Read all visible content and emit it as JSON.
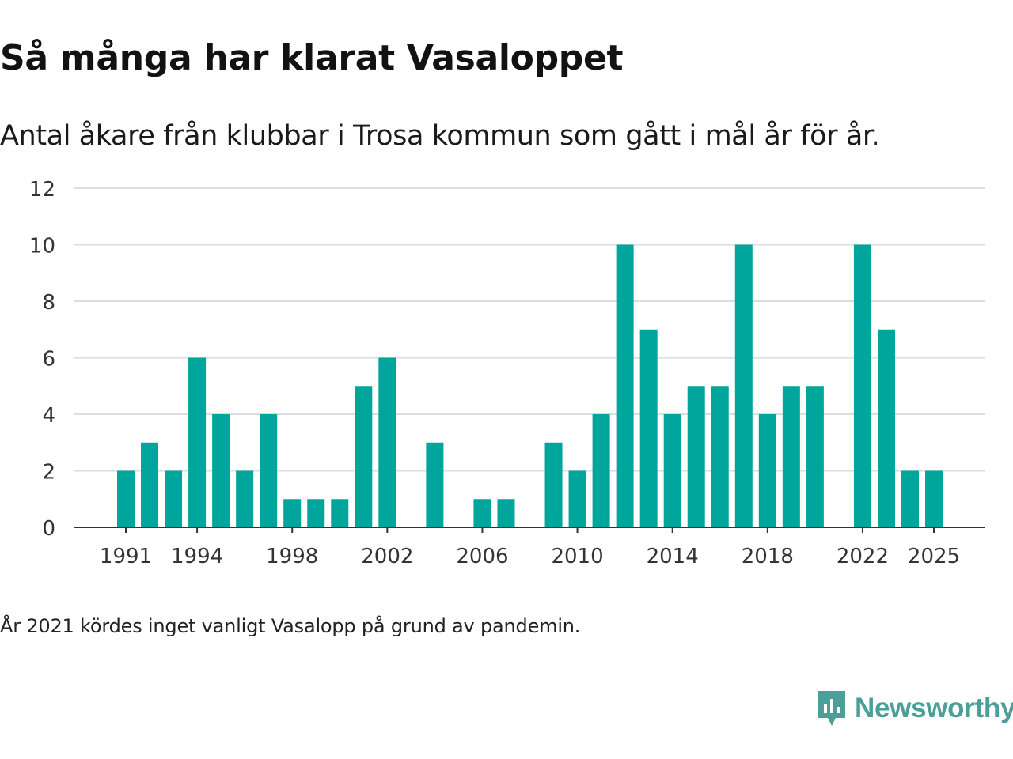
{
  "title": "Så många har klarat Vasaloppet",
  "subtitle": "Antal åkare från klubbar i Trosa kommun som gått i mål år för år.",
  "note": "År 2021 kördes inget vanligt Vasalopp på grund av pandemin.",
  "brand": {
    "name": "Newsworthy",
    "color": "#4a9f98"
  },
  "colors": {
    "bar": "#00a59b",
    "grid": "#dddddd",
    "axis": "#333333"
  },
  "chart_data": {
    "type": "bar",
    "title": "Så många har klarat Vasaloppet",
    "xlabel": "",
    "ylabel": "",
    "categories": [
      1991,
      1992,
      1993,
      1994,
      1995,
      1996,
      1997,
      1998,
      1999,
      2000,
      2001,
      2002,
      2003,
      2004,
      2005,
      2006,
      2007,
      2008,
      2009,
      2010,
      2011,
      2012,
      2013,
      2014,
      2015,
      2016,
      2017,
      2018,
      2019,
      2020,
      2021,
      2022,
      2023,
      2024,
      2025
    ],
    "values": [
      2,
      3,
      2,
      6,
      4,
      2,
      4,
      1,
      1,
      1,
      5,
      6,
      0,
      3,
      0,
      1,
      1,
      0,
      3,
      2,
      4,
      10,
      7,
      4,
      5,
      5,
      10,
      4,
      5,
      5,
      0,
      10,
      7,
      2,
      2
    ],
    "ylim": [
      0,
      12
    ],
    "yticks": [
      0,
      2,
      4,
      6,
      8,
      10,
      12
    ],
    "xtick_labels": [
      "1991",
      "1994",
      "1998",
      "2002",
      "2006",
      "2010",
      "2014",
      "2018",
      "2022",
      "2025"
    ],
    "grid": true
  }
}
